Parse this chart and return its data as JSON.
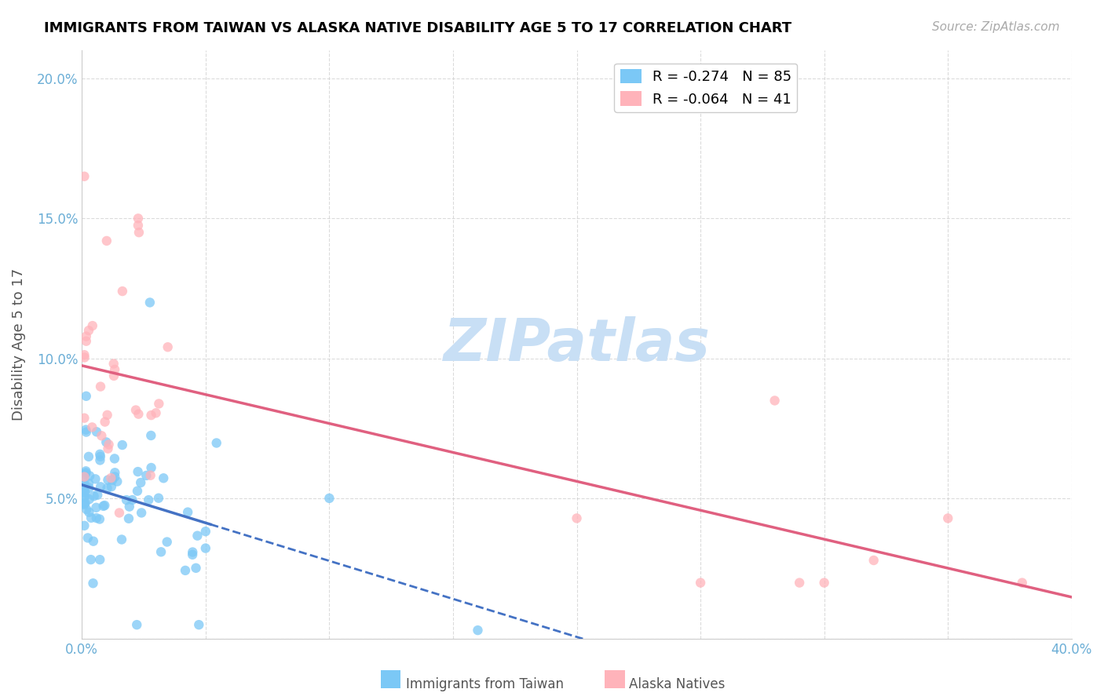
{
  "title": "IMMIGRANTS FROM TAIWAN VS ALASKA NATIVE DISABILITY AGE 5 TO 17 CORRELATION CHART",
  "source": "Source: ZipAtlas.com",
  "ylabel": "Disability Age 5 to 17",
  "xlim": [
    0,
    0.4
  ],
  "ylim": [
    0,
    0.21
  ],
  "xticks": [
    0.0,
    0.05,
    0.1,
    0.15,
    0.2,
    0.25,
    0.3,
    0.35,
    0.4
  ],
  "yticks": [
    0.0,
    0.05,
    0.1,
    0.15,
    0.2
  ],
  "taiwan_R": -0.274,
  "taiwan_N": 85,
  "alaska_R": -0.064,
  "alaska_N": 41,
  "taiwan_color": "#7bc8f6",
  "alaska_color": "#ffb3ba",
  "taiwan_line_color": "#4472c4",
  "alaska_line_color": "#e06080",
  "watermark_text": "ZIPatlas",
  "watermark_color": "#c8dff5",
  "background_color": "#ffffff",
  "grid_color": "#cccccc",
  "title_color": "#000000",
  "tick_color": "#6baed6",
  "legend_taiwan": "R = -0.274   N = 85",
  "legend_alaska": "R = -0.064   N = 41",
  "bottom_legend_taiwan": "Immigrants from Taiwan",
  "bottom_legend_alaska": "Alaska Natives"
}
